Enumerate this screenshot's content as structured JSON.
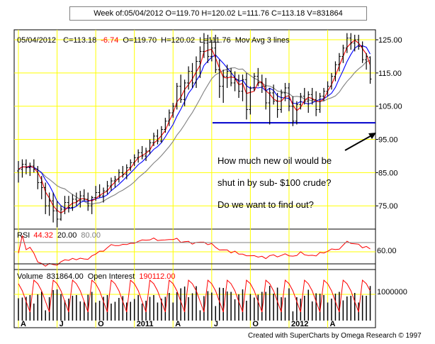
{
  "title_bar": "Week of:05/04/2012 O=119.70 H=120.02 L=111.76 C=113.18 V=831864",
  "header": {
    "date": "05/04/2012",
    "close": "C=113.18",
    "change": "-6.74",
    "open": "O=119.70",
    "high": "H=120.02",
    "low": "L=111.76",
    "indicator": "Mov Avg 3 lines"
  },
  "annotation": {
    "lines": [
      "How much new oil would be",
      "shut in by sub- $100 crude?",
      "Do we want to find out?"
    ]
  },
  "rsi_header": {
    "label": "RSI",
    "value": "44.32",
    "low": "20.00",
    "high": "80.00"
  },
  "volume_header": {
    "label": "Volume",
    "value": "831864.00",
    "oi_label": "Open Interest",
    "oi_value": "190112.00"
  },
  "footer": "Created with SuperCharts by Omega Research © 1997",
  "colors": {
    "grid": "#ffff00",
    "price": "#000000",
    "ma_fast": "#ff0000",
    "ma_mid": "#0000ff",
    "ma_slow": "#808080",
    "support_line": "#0000cc",
    "change_negative": "#ff0000"
  },
  "chart_data": [
    {
      "type": "ohlc",
      "x_tick_labels": [
        "A",
        "J",
        "O",
        "2011",
        "A",
        "J",
        "O",
        "2012",
        "A"
      ],
      "y_ticks": [
        "75.00",
        "85.00",
        "95.00",
        "105.00",
        "115.00",
        "125.00"
      ],
      "ylim": [
        68,
        128
      ],
      "support_level": 100.0,
      "bars": [
        [
          85.5,
          88.5,
          82.0,
          86.0
        ],
        [
          86.0,
          89.0,
          83.5,
          87.5
        ],
        [
          87.5,
          89.0,
          84.5,
          86.5
        ],
        [
          86.5,
          88.0,
          84.0,
          87.0
        ],
        [
          87.0,
          89.0,
          85.0,
          86.0
        ],
        [
          86.0,
          87.0,
          80.0,
          82.0
        ],
        [
          82.0,
          84.0,
          77.0,
          80.5
        ],
        [
          80.5,
          82.0,
          72.5,
          75.0
        ],
        [
          75.0,
          79.0,
          72.0,
          76.5
        ],
        [
          76.5,
          79.0,
          70.0,
          73.5
        ],
        [
          73.5,
          76.5,
          68.5,
          71.0
        ],
        [
          71.0,
          75.0,
          70.5,
          74.0
        ],
        [
          74.0,
          78.0,
          72.5,
          76.0
        ],
        [
          76.0,
          78.0,
          73.0,
          74.5
        ],
        [
          74.5,
          78.5,
          73.5,
          77.0
        ],
        [
          77.0,
          79.0,
          75.0,
          76.5
        ],
        [
          76.5,
          79.5,
          74.5,
          78.0
        ],
        [
          78.0,
          80.0,
          76.5,
          77.0
        ],
        [
          77.0,
          79.0,
          73.5,
          75.0
        ],
        [
          75.0,
          78.0,
          72.5,
          77.5
        ],
        [
          77.5,
          81.0,
          76.5,
          79.0
        ],
        [
          79.0,
          81.5,
          77.5,
          78.0
        ],
        [
          78.0,
          80.5,
          76.0,
          79.5
        ],
        [
          79.5,
          82.5,
          78.5,
          81.0
        ],
        [
          81.0,
          83.5,
          79.5,
          82.5
        ],
        [
          82.5,
          84.0,
          80.5,
          83.0
        ],
        [
          83.0,
          86.0,
          82.0,
          85.0
        ],
        [
          85.0,
          87.0,
          83.5,
          84.5
        ],
        [
          84.5,
          87.5,
          83.0,
          86.5
        ],
        [
          86.5,
          89.0,
          85.5,
          88.0
        ],
        [
          88.0,
          90.5,
          87.0,
          89.5
        ],
        [
          89.5,
          92.0,
          88.0,
          91.0
        ],
        [
          91.0,
          93.0,
          89.0,
          90.0
        ],
        [
          90.0,
          92.5,
          88.5,
          91.5
        ],
        [
          91.5,
          95.0,
          90.5,
          94.0
        ],
        [
          94.0,
          97.0,
          93.0,
          96.0
        ],
        [
          96.0,
          98.0,
          93.5,
          94.5
        ],
        [
          94.5,
          99.0,
          94.0,
          98.0
        ],
        [
          98.0,
          101.5,
          97.0,
          100.5
        ],
        [
          100.5,
          104.0,
          99.0,
          103.0
        ],
        [
          103.0,
          106.0,
          101.5,
          105.0
        ],
        [
          105.0,
          112.0,
          104.0,
          111.0
        ],
        [
          111.0,
          114.5,
          106.0,
          107.0
        ],
        [
          107.0,
          113.0,
          105.0,
          112.0
        ],
        [
          112.0,
          117.0,
          110.0,
          115.5
        ],
        [
          115.5,
          118.0,
          110.5,
          112.0
        ],
        [
          112.0,
          120.0,
          110.5,
          118.5
        ],
        [
          118.5,
          123.0,
          113.5,
          121.5
        ],
        [
          121.5,
          127.0,
          119.5,
          124.0
        ],
        [
          124.0,
          126.5,
          118.0,
          120.0
        ],
        [
          120.0,
          125.0,
          118.5,
          122.5
        ],
        [
          122.5,
          126.5,
          115.0,
          116.0
        ],
        [
          116.0,
          119.0,
          107.5,
          111.0
        ],
        [
          111.0,
          116.0,
          106.0,
          114.0
        ],
        [
          114.0,
          117.5,
          110.5,
          115.5
        ],
        [
          115.5,
          116.5,
          111.0,
          112.0
        ],
        [
          112.0,
          115.5,
          109.5,
          113.0
        ],
        [
          113.0,
          114.5,
          107.5,
          109.5
        ],
        [
          109.5,
          114.5,
          106.5,
          113.0
        ],
        [
          113.0,
          115.0,
          101.0,
          104.0
        ],
        [
          104.0,
          111.0,
          102.5,
          110.5
        ],
        [
          110.5,
          115.0,
          109.5,
          114.0
        ],
        [
          114.0,
          116.5,
          111.0,
          112.0
        ],
        [
          112.0,
          114.5,
          109.0,
          111.0
        ],
        [
          111.0,
          113.5,
          104.0,
          106.0
        ],
        [
          106.0,
          110.5,
          99.5,
          109.0
        ],
        [
          109.0,
          111.5,
          105.5,
          106.5
        ],
        [
          106.5,
          109.0,
          101.5,
          104.0
        ],
        [
          104.0,
          110.0,
          103.0,
          109.0
        ],
        [
          109.0,
          112.0,
          106.5,
          110.5
        ],
        [
          110.5,
          112.0,
          103.5,
          105.0
        ],
        [
          105.0,
          108.0,
          99.0,
          100.5
        ],
        [
          100.5,
          106.5,
          99.5,
          105.5
        ],
        [
          105.5,
          109.0,
          104.0,
          108.0
        ],
        [
          108.0,
          110.5,
          105.5,
          106.5
        ],
        [
          106.5,
          109.5,
          103.0,
          108.5
        ],
        [
          108.5,
          110.5,
          105.5,
          107.0
        ],
        [
          107.0,
          109.5,
          102.0,
          104.0
        ],
        [
          104.0,
          109.0,
          103.0,
          108.0
        ],
        [
          108.0,
          110.5,
          106.5,
          109.5
        ],
        [
          109.5,
          112.5,
          108.0,
          111.0
        ],
        [
          111.0,
          115.0,
          110.0,
          114.0
        ],
        [
          114.0,
          118.5,
          112.5,
          117.5
        ],
        [
          117.5,
          121.0,
          115.5,
          120.0
        ],
        [
          120.0,
          123.5,
          118.0,
          122.5
        ],
        [
          122.5,
          127.0,
          121.0,
          125.5
        ],
        [
          125.5,
          127.0,
          122.0,
          124.0
        ],
        [
          124.0,
          126.5,
          121.5,
          125.0
        ],
        [
          125.0,
          126.5,
          122.0,
          123.0
        ],
        [
          123.0,
          124.5,
          118.0,
          119.0
        ],
        [
          119.0,
          121.0,
          116.0,
          120.0
        ],
        [
          119.7,
          120.02,
          111.76,
          113.18
        ]
      ]
    }
  ]
}
